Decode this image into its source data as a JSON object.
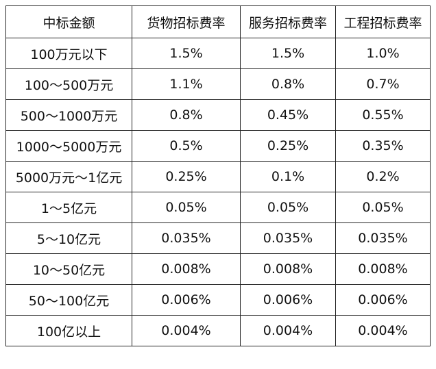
{
  "table": {
    "headers": [
      "中标金额",
      "货物招标费率",
      "服务招标费率",
      "工程招标费率"
    ],
    "rows": [
      [
        "100万元以下",
        "1.5%",
        "1.5%",
        "1.0%"
      ],
      [
        "100～500万元",
        "1.1%",
        "0.8%",
        "0.7%"
      ],
      [
        "500～1000万元",
        "0.8%",
        "0.45%",
        "0.55%"
      ],
      [
        "1000～5000万元",
        "0.5%",
        "0.25%",
        "0.35%"
      ],
      [
        "5000万元～1亿元",
        "0.25%",
        "0.1%",
        "0.2%"
      ],
      [
        "1～5亿元",
        "0.05%",
        "0.05%",
        "0.05%"
      ],
      [
        "5～10亿元",
        "0.035%",
        "0.035%",
        "0.035%"
      ],
      [
        "10～50亿元",
        "0.008%",
        "0.008%",
        "0.008%"
      ],
      [
        "50～100亿元",
        "0.006%",
        "0.006%",
        "0.006%"
      ],
      [
        "100亿以上",
        "0.004%",
        "0.004%",
        "0.004%"
      ]
    ]
  }
}
